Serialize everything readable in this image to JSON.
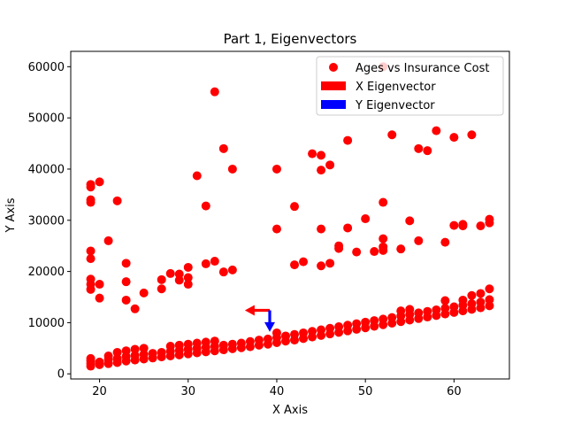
{
  "chart_data": {
    "type": "scatter",
    "title": "Part 1, Eigenvectors",
    "xlabel": "X Axis",
    "ylabel": "Y Axis",
    "xlim": [
      16.75,
      66.25
    ],
    "ylim": [
      -1000,
      63000
    ],
    "xticks": [
      20,
      30,
      40,
      50,
      60
    ],
    "yticks": [
      0,
      10000,
      20000,
      30000,
      40000,
      50000,
      60000
    ],
    "legend_position": "top-right",
    "point_color": "#ff0000",
    "series": [
      {
        "name": "Ages vs Insurance Cost",
        "kind": "scatter",
        "color": "#ff0000",
        "points": [
          [
            19,
            1500
          ],
          [
            19,
            2000
          ],
          [
            19,
            2500
          ],
          [
            19,
            3000
          ],
          [
            20,
            1800
          ],
          [
            20,
            2300
          ],
          [
            21,
            2000
          ],
          [
            21,
            2800
          ],
          [
            21,
            3500
          ],
          [
            22,
            2200
          ],
          [
            22,
            3000
          ],
          [
            22,
            4200
          ],
          [
            23,
            2500
          ],
          [
            23,
            3400
          ],
          [
            23,
            4500
          ],
          [
            24,
            2700
          ],
          [
            24,
            3600
          ],
          [
            24,
            4800
          ],
          [
            25,
            2900
          ],
          [
            25,
            3800
          ],
          [
            25,
            5000
          ],
          [
            26,
            3100
          ],
          [
            26,
            4000
          ],
          [
            27,
            3300
          ],
          [
            27,
            4200
          ],
          [
            28,
            3500
          ],
          [
            28,
            4400
          ],
          [
            28,
            5400
          ],
          [
            29,
            3700
          ],
          [
            29,
            4600
          ],
          [
            29,
            5600
          ],
          [
            30,
            3900
          ],
          [
            30,
            4800
          ],
          [
            30,
            5800
          ],
          [
            31,
            4100
          ],
          [
            31,
            5000
          ],
          [
            31,
            6000
          ],
          [
            32,
            4300
          ],
          [
            32,
            5200
          ],
          [
            32,
            6200
          ],
          [
            33,
            4500
          ],
          [
            33,
            5400
          ],
          [
            33,
            6400
          ],
          [
            34,
            4700
          ],
          [
            34,
            5600
          ],
          [
            35,
            4900
          ],
          [
            35,
            5800
          ],
          [
            36,
            5100
          ],
          [
            36,
            6000
          ],
          [
            37,
            5300
          ],
          [
            37,
            6300
          ],
          [
            38,
            5600
          ],
          [
            38,
            6600
          ],
          [
            39,
            5800
          ],
          [
            39,
            6800
          ],
          [
            40,
            6100
          ],
          [
            40,
            7100
          ],
          [
            40,
            8000
          ],
          [
            41,
            6400
          ],
          [
            41,
            7400
          ],
          [
            42,
            6600
          ],
          [
            42,
            7700
          ],
          [
            43,
            6900
          ],
          [
            43,
            8000
          ],
          [
            44,
            7200
          ],
          [
            44,
            8300
          ],
          [
            45,
            7500
          ],
          [
            45,
            8600
          ],
          [
            46,
            7800
          ],
          [
            46,
            8900
          ],
          [
            47,
            8100
          ],
          [
            47,
            9200
          ],
          [
            48,
            8400
          ],
          [
            48,
            9500
          ],
          [
            49,
            8700
          ],
          [
            49,
            9800
          ],
          [
            50,
            9000
          ],
          [
            50,
            10100
          ],
          [
            51,
            9300
          ],
          [
            51,
            10400
          ],
          [
            52,
            9600
          ],
          [
            52,
            10700
          ],
          [
            53,
            9900
          ],
          [
            53,
            11000
          ],
          [
            54,
            10200
          ],
          [
            54,
            11300
          ],
          [
            54,
            12300
          ],
          [
            55,
            10500
          ],
          [
            55,
            11600
          ],
          [
            55,
            12600
          ],
          [
            56,
            10800
          ],
          [
            56,
            11900
          ],
          [
            57,
            11100
          ],
          [
            57,
            12200
          ],
          [
            58,
            11400
          ],
          [
            58,
            12500
          ],
          [
            59,
            11700
          ],
          [
            59,
            12800
          ],
          [
            59,
            14300
          ],
          [
            60,
            12000
          ],
          [
            60,
            13100
          ],
          [
            61,
            12300
          ],
          [
            61,
            13400
          ],
          [
            61,
            14400
          ],
          [
            62,
            12600
          ],
          [
            62,
            13700
          ],
          [
            62,
            15300
          ],
          [
            63,
            12900
          ],
          [
            63,
            14000
          ],
          [
            63,
            15700
          ],
          [
            64,
            13300
          ],
          [
            64,
            14500
          ],
          [
            64,
            16600
          ],
          [
            19,
            16500
          ],
          [
            19,
            17500
          ],
          [
            19,
            18500
          ],
          [
            19,
            22500
          ],
          [
            19,
            24000
          ],
          [
            19,
            33500
          ],
          [
            19,
            34000
          ],
          [
            19,
            36500
          ],
          [
            19,
            37000
          ],
          [
            20,
            14800
          ],
          [
            20,
            17500
          ],
          [
            20,
            37500
          ],
          [
            21,
            26000
          ],
          [
            22,
            33800
          ],
          [
            23,
            21600
          ],
          [
            23,
            18000
          ],
          [
            23,
            14400
          ],
          [
            24,
            12700
          ],
          [
            25,
            15800
          ],
          [
            27,
            16600
          ],
          [
            27,
            18400
          ],
          [
            28,
            19600
          ],
          [
            29,
            18300
          ],
          [
            29,
            19500
          ],
          [
            30,
            17500
          ],
          [
            30,
            18800
          ],
          [
            30,
            20800
          ],
          [
            31,
            38700
          ],
          [
            32,
            21500
          ],
          [
            32,
            32800
          ],
          [
            33,
            22000
          ],
          [
            33,
            55100
          ],
          [
            34,
            44000
          ],
          [
            34,
            19900
          ],
          [
            35,
            20300
          ],
          [
            35,
            40000
          ],
          [
            40,
            28300
          ],
          [
            40,
            40000
          ],
          [
            42,
            32700
          ],
          [
            42,
            21300
          ],
          [
            43,
            21900
          ],
          [
            44,
            43000
          ],
          [
            45,
            21100
          ],
          [
            45,
            28300
          ],
          [
            45,
            39800
          ],
          [
            45,
            42700
          ],
          [
            46,
            21600
          ],
          [
            46,
            40800
          ],
          [
            47,
            24500
          ],
          [
            47,
            25000
          ],
          [
            48,
            45600
          ],
          [
            48,
            28500
          ],
          [
            49,
            23800
          ],
          [
            50,
            30300
          ],
          [
            51,
            23900
          ],
          [
            52,
            24100
          ],
          [
            52,
            24800
          ],
          [
            52,
            26400
          ],
          [
            52,
            33500
          ],
          [
            53,
            46700
          ],
          [
            54,
            24400
          ],
          [
            55,
            29900
          ],
          [
            56,
            26000
          ],
          [
            56,
            44000
          ],
          [
            57,
            43600
          ],
          [
            58,
            47500
          ],
          [
            59,
            25700
          ],
          [
            60,
            29000
          ],
          [
            60,
            46200
          ],
          [
            61,
            28900
          ],
          [
            61,
            29200
          ],
          [
            62,
            46700
          ],
          [
            63,
            28900
          ],
          [
            64,
            29500
          ],
          [
            64,
            30200
          ],
          [
            52,
            60000
          ]
        ]
      },
      {
        "name": "X Eigenvector",
        "kind": "arrow",
        "color": "#ff0000",
        "origin": [
          39.2,
          12400
        ],
        "delta": [
          -2.8,
          0
        ]
      },
      {
        "name": "Y Eigenvector",
        "kind": "arrow",
        "color": "#0000ff",
        "origin": [
          39.2,
          12400
        ],
        "delta": [
          0,
          -4200
        ]
      }
    ]
  }
}
